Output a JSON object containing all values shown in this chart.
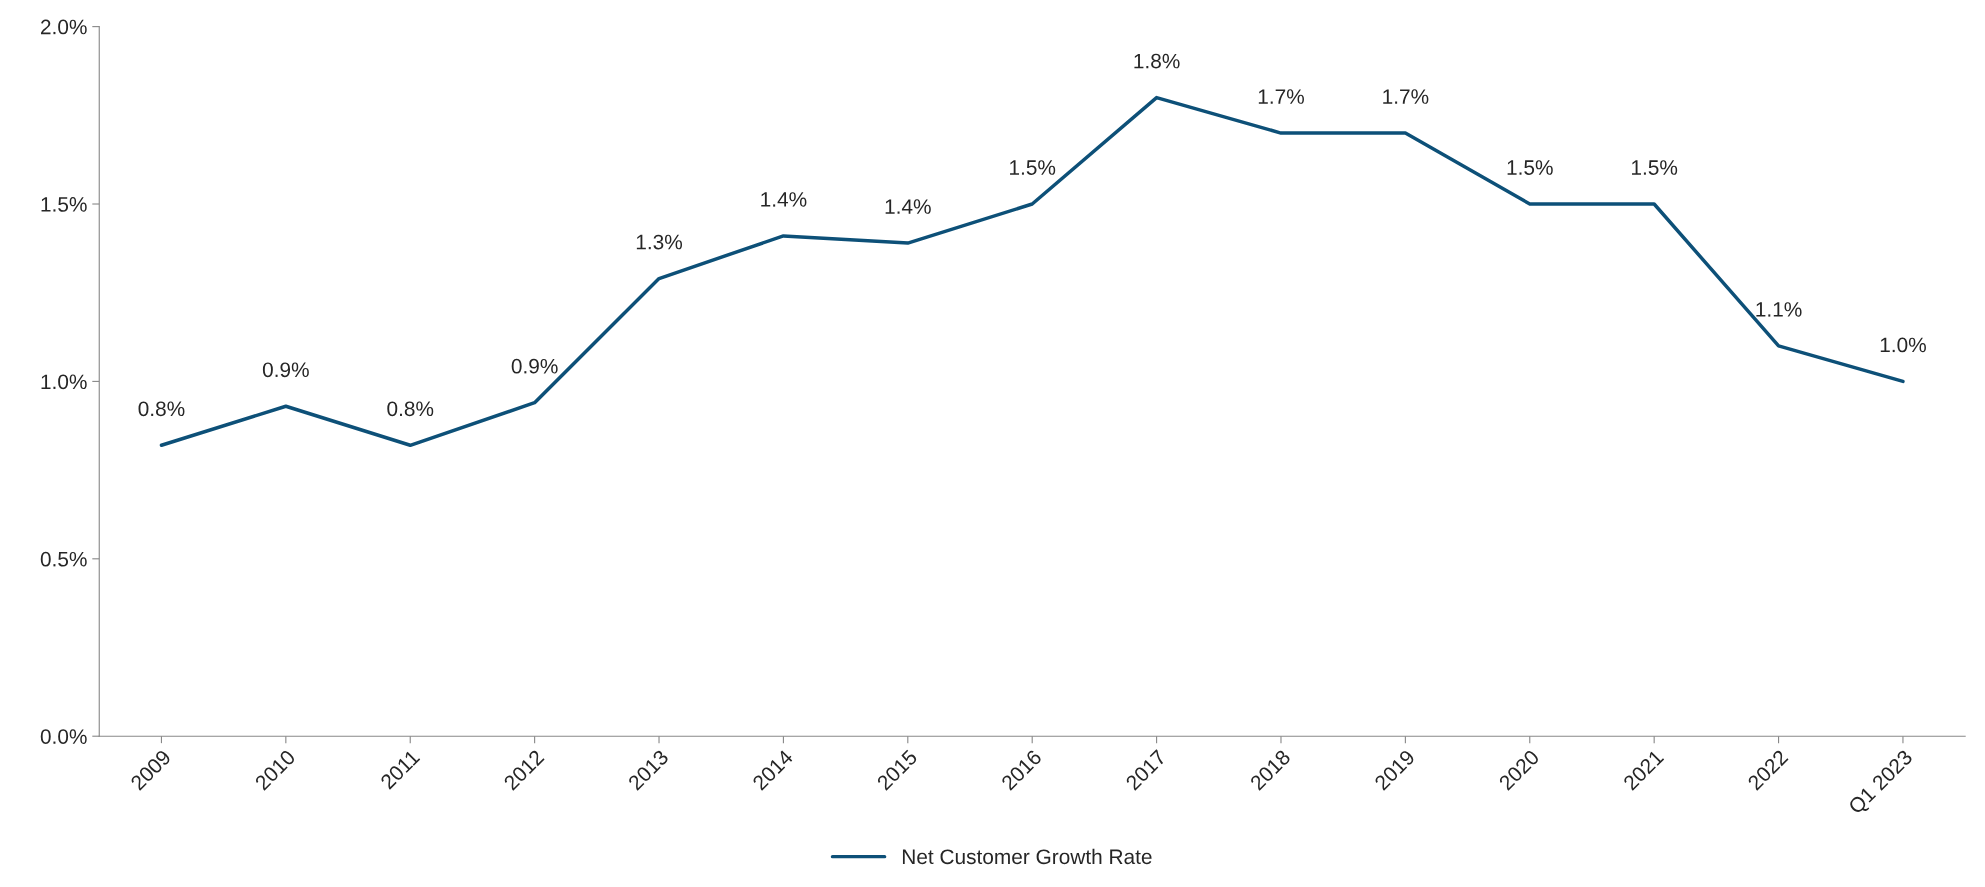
{
  "chart_data": {
    "type": "line",
    "categories": [
      "2009",
      "2010",
      "2011",
      "2012",
      "2013",
      "2014",
      "2015",
      "2016",
      "2017",
      "2018",
      "2019",
      "2020",
      "2021",
      "2022",
      "Q1 2023"
    ],
    "series": [
      {
        "name": "Net Customer Growth Rate",
        "color": "#0d5078",
        "values": [
          0.82,
          0.93,
          0.82,
          0.94,
          1.29,
          1.41,
          1.39,
          1.5,
          1.8,
          1.7,
          1.7,
          1.5,
          1.5,
          1.1,
          1.0
        ],
        "value_labels": [
          "0.8%",
          "0.9%",
          "0.8%",
          "0.9%",
          "1.3%",
          "1.4%",
          "1.4%",
          "1.5%",
          "1.8%",
          "1.7%",
          "1.7%",
          "1.5%",
          "1.5%",
          "1.1%",
          "1.0%"
        ]
      }
    ],
    "ylim": [
      0,
      2.0
    ],
    "yticks": [
      {
        "value": 0,
        "label": "0.0%"
      },
      {
        "value": 0.5,
        "label": "0.5%"
      },
      {
        "value": 1.0,
        "label": "1.0%"
      },
      {
        "value": 1.5,
        "label": "1.5%"
      },
      {
        "value": 2.0,
        "label": "2.0%"
      }
    ],
    "grid": false,
    "legend": "bottom",
    "marker": "none",
    "line_style": "solid"
  }
}
